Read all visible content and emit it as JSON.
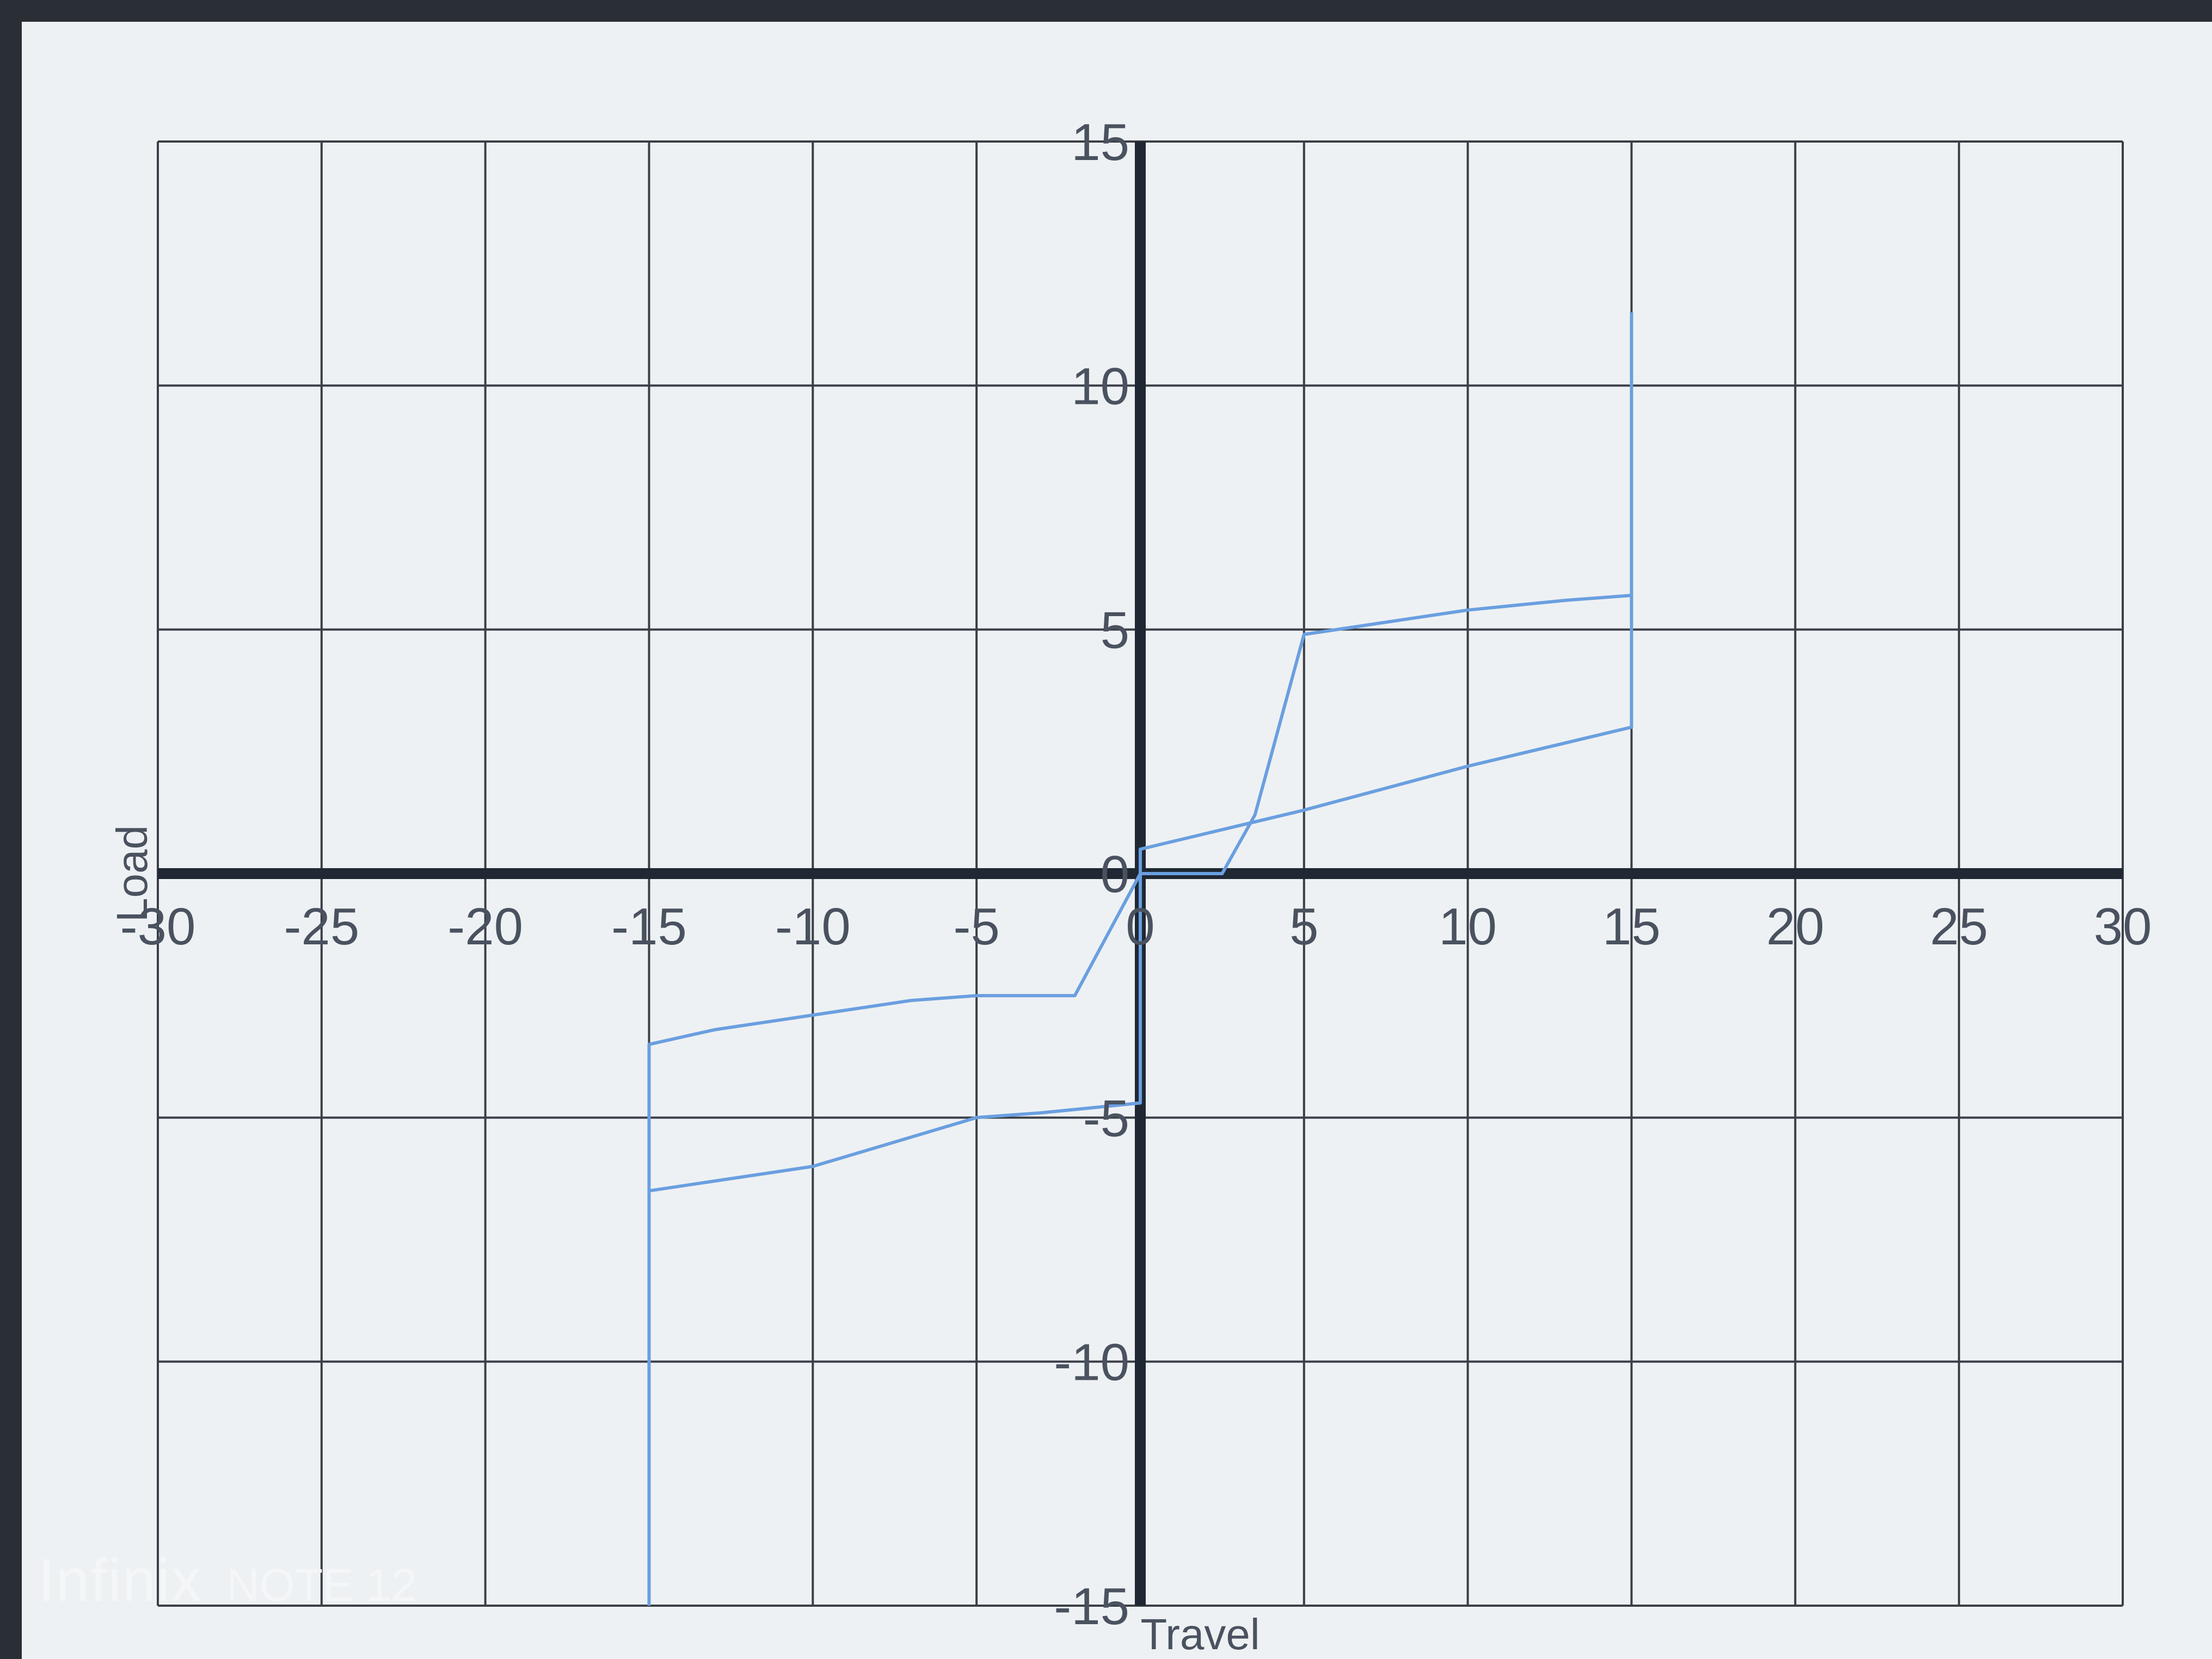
{
  "chart_data": {
    "type": "line",
    "xlabel": "Travel",
    "ylabel": "Load",
    "xlim": [
      -30,
      30
    ],
    "ylim": [
      -15,
      15
    ],
    "x_ticks": [
      -30,
      -25,
      -20,
      -15,
      -10,
      -5,
      0,
      5,
      10,
      15,
      20,
      25,
      30
    ],
    "y_ticks": [
      -15,
      -10,
      -5,
      0,
      5,
      10,
      15
    ],
    "grid": true,
    "series": [
      {
        "x": [
          -15,
          -15,
          -13,
          -10,
          -7,
          -5,
          -2,
          0,
          2.5,
          3.5,
          5,
          8,
          10,
          13,
          15,
          15
        ],
        "y": [
          -15,
          -3.5,
          -3.2,
          -2.9,
          -2.6,
          -2.5,
          -2.5,
          0,
          0,
          1.2,
          4.9,
          5.2,
          5.4,
          5.6,
          5.7,
          11.5
        ]
      },
      {
        "x": [
          -15,
          -15,
          -13,
          -10,
          -7,
          -5,
          -3,
          0,
          0,
          5,
          10,
          15,
          15
        ],
        "y": [
          -15,
          -6.5,
          -6.3,
          -6,
          -5.4,
          -5,
          -4.9,
          -4.7,
          0.5,
          1.3,
          2.2,
          3,
          11.5
        ]
      }
    ],
    "colors": {
      "series": "#6a9fe0",
      "axis": "#1f2833",
      "grid": "#3a3f48",
      "background": "#eef1f3"
    }
  },
  "watermark": {
    "brand": "Infinix",
    "model": "NOTE 12"
  }
}
